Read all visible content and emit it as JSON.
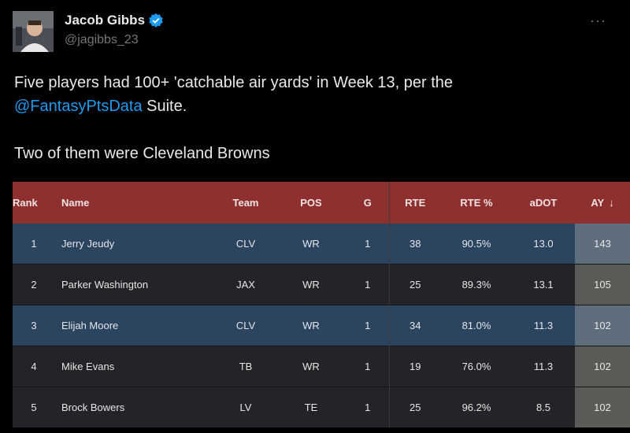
{
  "user": {
    "display_name": "Jacob Gibbs",
    "handle": "@jagibbs_23",
    "verified_color": "#1d9bf0",
    "avatar_icon": "profile-photo"
  },
  "menu": {
    "more_label": "···"
  },
  "tweet": {
    "line1": "Five players had 100+ 'catchable air yards' in Week 13, per the",
    "mention": "@FantasyPtsData",
    "line2_rest": " Suite.",
    "line3": "Two of them were Cleveland Browns"
  },
  "table": {
    "headers": {
      "rank": "Rank",
      "name": "Name",
      "team": "Team",
      "pos": "POS",
      "g": "G",
      "rte": "RTE",
      "rte_pct": "RTE %",
      "adot": "aDOT",
      "ay": "AY",
      "ay_sort": "↓"
    },
    "rows": [
      {
        "rank": "1",
        "name": "Jerry Jeudy",
        "team": "CLV",
        "pos": "WR",
        "g": "1",
        "rte": "38",
        "rte_pct": "90.5%",
        "adot": "13.0",
        "ay": "143"
      },
      {
        "rank": "2",
        "name": "Parker Washington",
        "team": "JAX",
        "pos": "WR",
        "g": "1",
        "rte": "25",
        "rte_pct": "89.3%",
        "adot": "13.1",
        "ay": "105"
      },
      {
        "rank": "3",
        "name": "Elijah Moore",
        "team": "CLV",
        "pos": "WR",
        "g": "1",
        "rte": "34",
        "rte_pct": "81.0%",
        "adot": "11.3",
        "ay": "102"
      },
      {
        "rank": "4",
        "name": "Mike Evans",
        "team": "TB",
        "pos": "WR",
        "g": "1",
        "rte": "19",
        "rte_pct": "76.0%",
        "adot": "11.3",
        "ay": "102"
      },
      {
        "rank": "5",
        "name": "Brock Bowers",
        "team": "LV",
        "pos": "TE",
        "g": "1",
        "rte": "25",
        "rte_pct": "96.2%",
        "adot": "8.5",
        "ay": "102"
      }
    ],
    "colors": {
      "header": "#8f3030",
      "highlight_row": "#2b4460",
      "dark_row": "#232427"
    }
  }
}
